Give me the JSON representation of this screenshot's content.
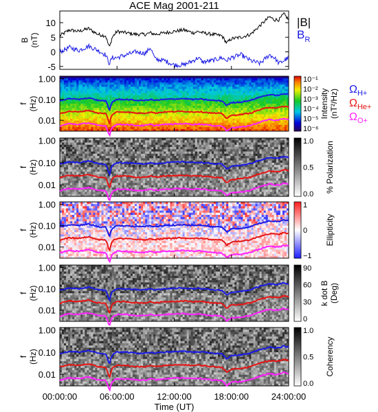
{
  "title": "ACE Mag 2001-211",
  "xlabel": "Time (UT)",
  "colors": {
    "black": "#000000",
    "blue": "#1a1ae6",
    "red": "#e61414",
    "magenta": "#ff22ff"
  },
  "chart_data": [
    {
      "type": "line",
      "panel": "magnetic-field",
      "ylabel_top": "B",
      "ylabel_bottom": "(nT)",
      "yticks": [
        "10",
        "5",
        "0",
        "-5"
      ],
      "ylim": [
        -6,
        14
      ],
      "x_range_hours": [
        0,
        24
      ],
      "legend": [
        {
          "text": "|B|",
          "color": "#000000"
        },
        {
          "text": "B",
          "sub": "R",
          "color": "#1a1ae6"
        }
      ],
      "series": [
        {
          "name": "|B|",
          "color": "#000000",
          "x": [
            0,
            1,
            2,
            3,
            4,
            4.8,
            5.2,
            5.5,
            6,
            7,
            8,
            9,
            9.5,
            10,
            11,
            12,
            13,
            14,
            14.5,
            15,
            16,
            17,
            17.5,
            18,
            19,
            20,
            21,
            22,
            22.5,
            23,
            23.5,
            24
          ],
          "values": [
            5.5,
            7.5,
            7,
            8,
            6,
            5.5,
            1.5,
            5,
            7,
            6.5,
            6,
            6,
            6.5,
            6,
            6.5,
            7,
            7.5,
            6.5,
            7,
            6.5,
            6,
            5.5,
            3,
            4.5,
            5,
            6,
            9,
            12,
            11,
            11,
            13,
            11
          ]
        },
        {
          "name": "B_R",
          "color": "#1a1ae6",
          "x": [
            0,
            1,
            2,
            3,
            4,
            4.8,
            5.2,
            5.5,
            6,
            7,
            8,
            9,
            9.5,
            10,
            11,
            12,
            13,
            14,
            14.5,
            15,
            16,
            17,
            17.5,
            18,
            19,
            20,
            21,
            22,
            22.5,
            23,
            23.5,
            24
          ],
          "values": [
            0,
            1.5,
            0.5,
            2,
            0.5,
            -1,
            -4,
            -2,
            -2,
            -1,
            0,
            -0.5,
            1.5,
            -2.5,
            -3,
            -4.5,
            -4.5,
            -3,
            -2,
            -3.5,
            -3,
            -2,
            -3,
            -2,
            -1,
            -3,
            -4,
            -1,
            -2,
            -4,
            -3,
            -2
          ]
        }
      ]
    },
    {
      "type": "heatmap",
      "panel": "intensity",
      "ylabel_top": "f",
      "ylabel_bottom": "(Hz)",
      "yticks": [
        "1.00",
        "0.10",
        "0.01"
      ],
      "colorbar": {
        "scale": "rainbow",
        "ticks": [
          "10⁻¹",
          "10⁻²",
          "10⁻³",
          "10⁻⁴",
          "10⁻⁵",
          "10⁻⁶"
        ],
        "label_line1": "Intensity",
        "label_line2": "(nT²/Hz)"
      },
      "legend": [
        {
          "text": "Ω",
          "sub": "H+",
          "color": "#1a1ae6"
        },
        {
          "text": "Ω",
          "sub": "He+",
          "color": "#e61414"
        },
        {
          "text": "Ω",
          "sub": "O+",
          "color": "#ff22ff"
        }
      ]
    },
    {
      "type": "heatmap",
      "panel": "polarization",
      "ylabel_top": "f",
      "ylabel_bottom": "(Hz)",
      "yticks": [
        "1.00",
        "0.10",
        "0.01"
      ],
      "colorbar": {
        "scale": "gray",
        "ticks": [
          "1.0",
          "0.5",
          "0.0"
        ],
        "label_line1": "% Polarization",
        "label_line2": ""
      }
    },
    {
      "type": "heatmap",
      "panel": "ellipticity",
      "ylabel_top": "f",
      "ylabel_bottom": "(Hz)",
      "yticks": [
        "1.00",
        "0.10",
        "0.01"
      ],
      "colorbar": {
        "scale": "bwr",
        "ticks": [
          "1",
          "0",
          "−1"
        ],
        "label_line1": "Ellipticity",
        "label_line2": ""
      }
    },
    {
      "type": "heatmap",
      "panel": "k-dot-b",
      "ylabel_top": "f",
      "ylabel_bottom": "(Hz)",
      "yticks": [
        "1.00",
        "0.10",
        "0.01"
      ],
      "colorbar": {
        "scale": "gray",
        "ticks": [
          "90",
          "60",
          "30",
          "0"
        ],
        "label_line1": "k dot B",
        "label_line2": "(Deg)"
      }
    },
    {
      "type": "heatmap",
      "panel": "coherency",
      "ylabel_top": "f",
      "ylabel_bottom": "(Hz)",
      "yticks": [
        "1.00",
        "0.10",
        "0.01"
      ],
      "colorbar": {
        "scale": "gray",
        "ticks": [
          "1.0",
          "0.5",
          "0.0"
        ],
        "label_line1": "Coherency",
        "label_line2": ""
      },
      "xticks": [
        "00:00:00",
        "06:00:00",
        "12:00:00",
        "18:00:00",
        "24:00:00"
      ]
    }
  ],
  "gyrofrequency_curves": {
    "x_hours": [
      0,
      1,
      2,
      3,
      4,
      4.8,
      5.2,
      5.5,
      6,
      7,
      8,
      9,
      9.5,
      10,
      11,
      12,
      13,
      14,
      14.5,
      15,
      16,
      17,
      17.5,
      18,
      19,
      20,
      21,
      22,
      22.5,
      23,
      23.5,
      24
    ],
    "H+": [
      0.085,
      0.11,
      0.1,
      0.12,
      0.09,
      0.085,
      0.025,
      0.075,
      0.1,
      0.1,
      0.09,
      0.09,
      0.1,
      0.09,
      0.1,
      0.105,
      0.11,
      0.1,
      0.105,
      0.1,
      0.09,
      0.085,
      0.05,
      0.07,
      0.075,
      0.09,
      0.13,
      0.17,
      0.16,
      0.16,
      0.19,
      0.17
    ],
    "He+": [
      0.021,
      0.027,
      0.025,
      0.03,
      0.022,
      0.021,
      0.006,
      0.019,
      0.025,
      0.025,
      0.022,
      0.022,
      0.025,
      0.022,
      0.025,
      0.026,
      0.027,
      0.025,
      0.026,
      0.025,
      0.022,
      0.021,
      0.012,
      0.017,
      0.019,
      0.022,
      0.032,
      0.042,
      0.04,
      0.04,
      0.047,
      0.042
    ],
    "O+": [
      0.0053,
      0.0069,
      0.0063,
      0.0075,
      0.0056,
      0.0053,
      0.0016,
      0.0047,
      0.0063,
      0.0063,
      0.0056,
      0.0056,
      0.0063,
      0.0056,
      0.0063,
      0.0066,
      0.0069,
      0.0063,
      0.0066,
      0.0063,
      0.0056,
      0.0053,
      0.0031,
      0.0044,
      0.0047,
      0.0056,
      0.0081,
      0.011,
      0.01,
      0.01,
      0.012,
      0.011
    ]
  }
}
